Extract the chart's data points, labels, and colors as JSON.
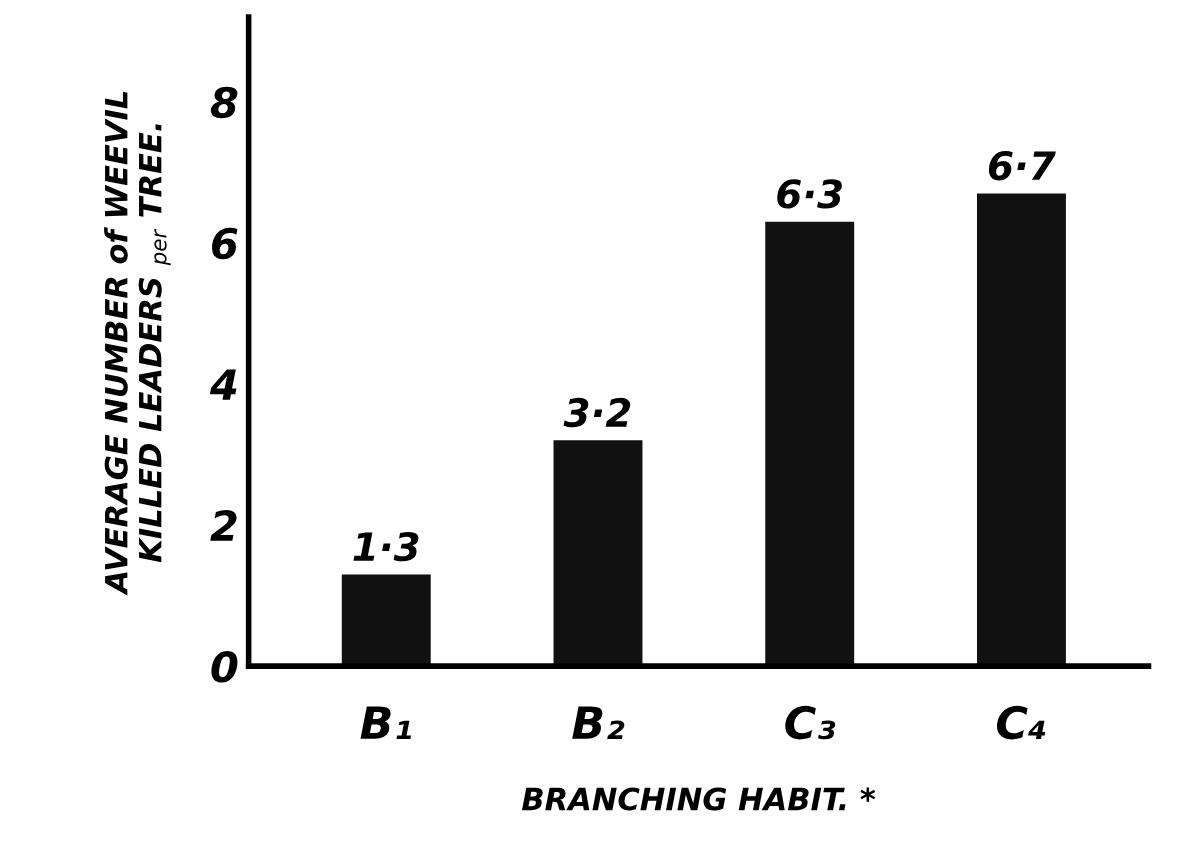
{
  "chart_data": {
    "type": "bar",
    "xlabel": "BRANCHING HABIT. *",
    "ylabel": "AVERAGE NUMBER of WEEVIL\nKILLED LEADERS $_{per}$ TREE.",
    "categories": [
      "B₁",
      "B₂",
      "C₃",
      "C₄"
    ],
    "values": [
      1.3,
      3.2,
      6.3,
      6.7
    ],
    "value_labels": [
      "1·3",
      "3·2",
      "6·3",
      "6·7"
    ],
    "color": "#111111",
    "ylim": [
      0,
      9.2
    ],
    "yticks": [
      0,
      2,
      4,
      6,
      8
    ],
    "grid": false
  }
}
